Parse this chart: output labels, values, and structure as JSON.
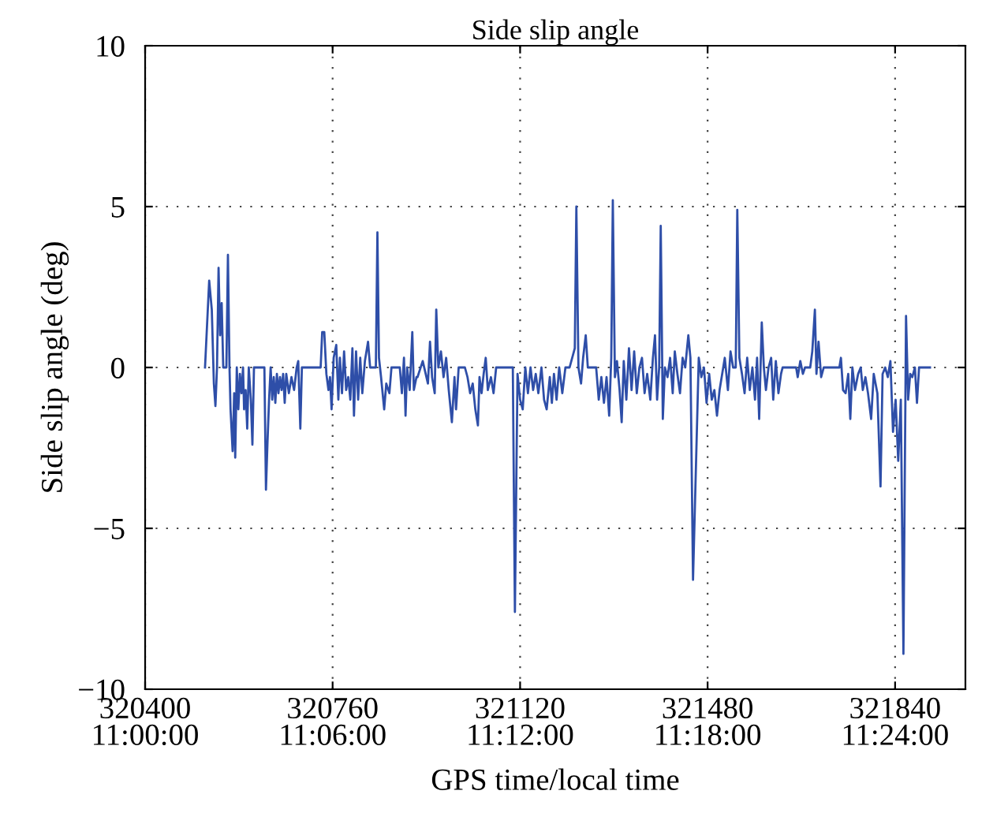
{
  "chart_data": {
    "type": "line",
    "title": "Side slip angle",
    "xlabel": "GPS time/local time",
    "ylabel": "Side slip angle (deg)",
    "xlim": [
      320400,
      321975
    ],
    "ylim": [
      -10,
      10
    ],
    "xticks": [
      320400,
      320760,
      321120,
      321480,
      321840
    ],
    "x2lim": [
      11.0,
      11.4375
    ],
    "x2ticks": [
      {
        "value": 11.0,
        "label": "11:00:00"
      },
      {
        "value": 11.1,
        "label": "11:06:00"
      },
      {
        "value": 11.2,
        "label": "11:12:00"
      },
      {
        "value": 11.3,
        "label": "11:18:00"
      },
      {
        "value": 11.4,
        "label": "11:24:00"
      }
    ],
    "yticks": [
      {
        "value": -10,
        "label": "−10"
      },
      {
        "value": -5,
        "label": "−5"
      },
      0,
      5,
      10
    ],
    "grid": true,
    "line_style": "solid",
    "marker": "none",
    "series": [
      {
        "color": "#2e4ea8",
        "x": [
          320515,
          320523,
          320528,
          320532,
          320535,
          320538,
          320541,
          320544,
          320547,
          320550,
          320556,
          320559,
          320562,
          320564,
          320568,
          320571,
          320573,
          320576,
          320579,
          320582,
          320585,
          320588,
          320590,
          320593,
          320596,
          320599,
          320603,
          320606,
          320609,
          320629,
          320632,
          320635,
          320638,
          320641,
          320644,
          320647,
          320650,
          320653,
          320656,
          320659,
          320662,
          320665,
          320668,
          320671,
          320676,
          320681,
          320686,
          320691,
          320694,
          320698,
          320701,
          320737,
          320740,
          320744,
          320748,
          320752,
          320755,
          320758,
          320762,
          320767,
          320771,
          320774,
          320778,
          320782,
          320786,
          320790,
          320794,
          320798,
          320801,
          320805,
          320809,
          320813,
          320817,
          320822,
          320828,
          320832,
          320843,
          320846,
          320849,
          320853,
          320859,
          320863,
          320869,
          320873,
          320889,
          320893,
          320897,
          320900,
          320903,
          320908,
          320913,
          320916,
          320921,
          320923,
          320933,
          320943,
          320947,
          320951,
          320956,
          320959,
          320963,
          320968,
          320973,
          320978,
          320983,
          320989,
          320994,
          320997,
          321002,
          321014,
          321019,
          321024,
          321029,
          321034,
          321039,
          321042,
          321046,
          321050,
          321054,
          321058,
          321064,
          321069,
          321074,
          321106,
          321110,
          321115,
          321120,
          321125,
          321130,
          321135,
          321140,
          321145,
          321150,
          321155,
          321161,
          321166,
          321171,
          321177,
          321181,
          321185,
          321190,
          321195,
          321201,
          321207,
          321215,
          321225,
          321228,
          321232,
          321237,
          321241,
          321246,
          321250,
          321266,
          321271,
          321276,
          321281,
          321286,
          321291,
          321295,
          321298,
          321302,
          321306,
          321311,
          321315,
          321319,
          321324,
          321329,
          321334,
          321339,
          321344,
          321349,
          321354,
          321359,
          321364,
          321370,
          321375,
          321379,
          321383,
          321387,
          321390,
          321394,
          321398,
          321403,
          321408,
          321413,
          321417,
          321422,
          321427,
          321432,
          321437,
          321443,
          321447,
          321452,
          321463,
          321468,
          321473,
          321478,
          321483,
          321488,
          321493,
          321498,
          321503,
          321508,
          321513,
          321519,
          321524,
          321529,
          321534,
          321537,
          321541,
          321546,
          321551,
          321556,
          321561,
          321566,
          321571,
          321575,
          321579,
          321584,
          321588,
          321592,
          321597,
          321602,
          321606,
          321611,
          321616,
          321621,
          321624,
          321650,
          321653,
          321658,
          321663,
          321667,
          321677,
          321681,
          321686,
          321689,
          321693,
          321698,
          321703,
          321733,
          321736,
          321740,
          321745,
          321750,
          321754,
          321758,
          321763,
          321769,
          321774,
          321778,
          321783,
          321788,
          321794,
          321799,
          321806,
          321812,
          321816,
          321821,
          321826,
          321831,
          321836,
          321841,
          321846,
          321851,
          321856,
          321861,
          321865,
          321869,
          321873,
          321878,
          321882,
          321886,
          321907
        ],
        "values": [
          0,
          2.7,
          1.8,
          -0.5,
          -1.2,
          0,
          3.1,
          1.0,
          2.0,
          0,
          0,
          3.5,
          0,
          -1.3,
          -2.6,
          -0.8,
          -2.8,
          0,
          -1.3,
          -0.2,
          -0.8,
          0,
          -1.3,
          -0.7,
          -1.9,
          0,
          -1.0,
          -2.4,
          0,
          0,
          -3.8,
          -2.3,
          -1.0,
          0,
          -1.0,
          -0.3,
          -1.1,
          -0.2,
          -0.8,
          -0.3,
          -0.7,
          -0.2,
          -1.1,
          -0.2,
          -0.8,
          -0.3,
          -0.7,
          0,
          0.2,
          -1.9,
          0,
          0,
          1.1,
          1.1,
          -0.2,
          -0.7,
          -0.3,
          -1.3,
          0.3,
          0.7,
          -1.0,
          0.3,
          -0.8,
          0.5,
          -0.7,
          -0.3,
          -1.0,
          0.6,
          -1.5,
          0.5,
          -1.0,
          0.3,
          -0.8,
          0.2,
          0.8,
          0,
          0,
          4.2,
          0.3,
          -0.3,
          -1.3,
          -0.5,
          -0.8,
          0,
          0,
          -0.8,
          0.3,
          -1.5,
          0,
          -0.7,
          1.1,
          -0.7,
          -0.3,
          -0.3,
          0.2,
          -0.5,
          0.8,
          -0.3,
          -0.8,
          1.8,
          0,
          0.5,
          -0.3,
          0.3,
          -0.7,
          -1.7,
          -0.3,
          -1.3,
          0,
          0,
          -0.3,
          -0.8,
          -0.5,
          -1.3,
          -1.8,
          -0.3,
          -0.8,
          -0.2,
          0.3,
          -0.7,
          -0.3,
          -0.8,
          0,
          0,
          -7.6,
          -0.2,
          -1.0,
          -1.3,
          0,
          -0.8,
          0,
          -0.7,
          -0.2,
          -0.8,
          0,
          -1.0,
          -1.3,
          -0.3,
          -1.1,
          -0.2,
          -1.0,
          0,
          -0.8,
          0,
          0,
          0.6,
          5.0,
          0,
          -0.5,
          0.3,
          1.0,
          0,
          0,
          -1.0,
          -0.3,
          -1.1,
          -0.3,
          -1.5,
          0.3,
          5.2,
          -0.3,
          0.2,
          -0.7,
          -1.7,
          0.2,
          -1.0,
          0.6,
          -0.7,
          0.5,
          -0.8,
          0,
          0.3,
          -0.8,
          -0.2,
          -1.0,
          0.3,
          1.0,
          -1.0,
          0,
          4.4,
          -1.6,
          0,
          -0.3,
          0.3,
          -0.8,
          0.5,
          -0.2,
          -0.8,
          0.3,
          0,
          1.0,
          0.3,
          -6.6,
          0.3,
          -0.3,
          0,
          -1.1,
          -0.2,
          -1.0,
          -0.7,
          -1.5,
          -0.7,
          -0.2,
          0.3,
          -0.7,
          0.5,
          0,
          0,
          4.9,
          0.3,
          -0.2,
          -0.8,
          0.3,
          -0.7,
          0,
          -1.0,
          0.3,
          -1.6,
          1.4,
          0,
          -0.7,
          0,
          0.3,
          -1.0,
          0.2,
          -0.8,
          -0.2,
          0,
          0,
          -0.3,
          0.2,
          -0.2,
          0,
          0,
          0.5,
          1.8,
          -0.2,
          0.8,
          -0.3,
          0,
          0,
          0.3,
          -0.7,
          -0.8,
          -0.2,
          -1.6,
          0,
          -0.7,
          -0.2,
          0,
          -0.7,
          -0.3,
          -0.8,
          -1.6,
          -0.2,
          -0.8,
          -3.7,
          -0.2,
          0,
          -0.3,
          0.2,
          -2.0,
          -1.0,
          -2.9,
          -1.0,
          -8.9,
          1.6,
          -1.0,
          -0.2,
          -0.3,
          0,
          -1.1,
          0,
          0
        ]
      }
    ]
  }
}
